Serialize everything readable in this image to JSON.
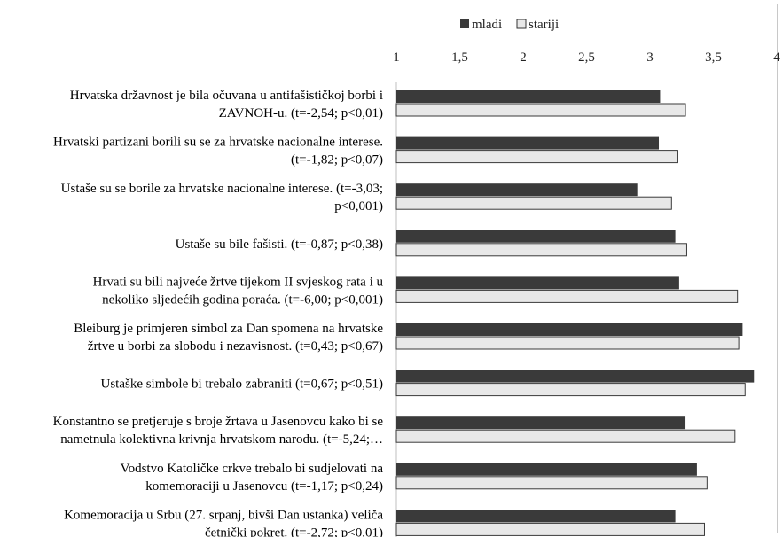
{
  "chart_data": {
    "type": "bar",
    "orientation": "horizontal",
    "title": "",
    "xlabel": "",
    "ylabel": "",
    "xlim": [
      1,
      4
    ],
    "ticks": [
      "1",
      "1,5",
      "2",
      "2,5",
      "3",
      "3,5",
      "4"
    ],
    "tick_values": [
      1,
      1.5,
      2,
      2.5,
      3,
      3.5,
      4
    ],
    "grid": false,
    "legend_position": "top-center",
    "categories": [
      [
        "Hrvatska državnost je bila očuvana u antifašističkoj borbi i",
        "ZAVNOH-u. (t=-2,54; p<0,01)"
      ],
      [
        "Hrvatski partizani borili su se za hrvatske nacionalne interese.",
        "(t=-1,82; p<0,07)"
      ],
      [
        "Ustaše su se borile za hrvatske nacionalne interese. (t=-3,03;",
        "p<0,001)"
      ],
      [
        "Ustaše su bile fašisti. (t=-0,87; p<0,38)"
      ],
      [
        "Hrvati su bili najveće žrtve tijekom  II svjeskog rata i u",
        "nekoliko sljedećih godina poraća. (t=-6,00; p<0,001)"
      ],
      [
        "Bleiburg je primjeren simbol za Dan spomena na hrvatske",
        "žrtve u borbi za slobodu i nezavisnost. (t=0,43; p<0,67)"
      ],
      [
        "Ustaške simbole bi trebalo zabraniti (t=0,67; p<0,51)"
      ],
      [
        "Konstantno se pretjeruje s broje žrtava u Jasenovcu kako bi se",
        "nametnula kolektivna krivnja hrvatskom narodu. (t=-5,24;…"
      ],
      [
        "Vodstvo Katoličke crkve trebalo bi sudjelovati na",
        "komemoraciji u Jasenovcu (t=-1,17; p<0,24)"
      ],
      [
        "Komemoracija u Srbu (27. srpanj, bivši Dan ustanka) veliča",
        "četnički pokret. (t=-2,72; p<0,01)"
      ]
    ],
    "series": [
      {
        "name": "mladi",
        "color": "#3a3a3a",
        "values": [
          3.08,
          3.07,
          2.9,
          3.2,
          3.23,
          3.73,
          3.82,
          3.28,
          3.37,
          3.2
        ]
      },
      {
        "name": "stariji",
        "color": "#e8e8e8",
        "values": [
          3.28,
          3.22,
          3.17,
          3.29,
          3.69,
          3.7,
          3.75,
          3.67,
          3.45,
          3.43
        ]
      }
    ]
  }
}
